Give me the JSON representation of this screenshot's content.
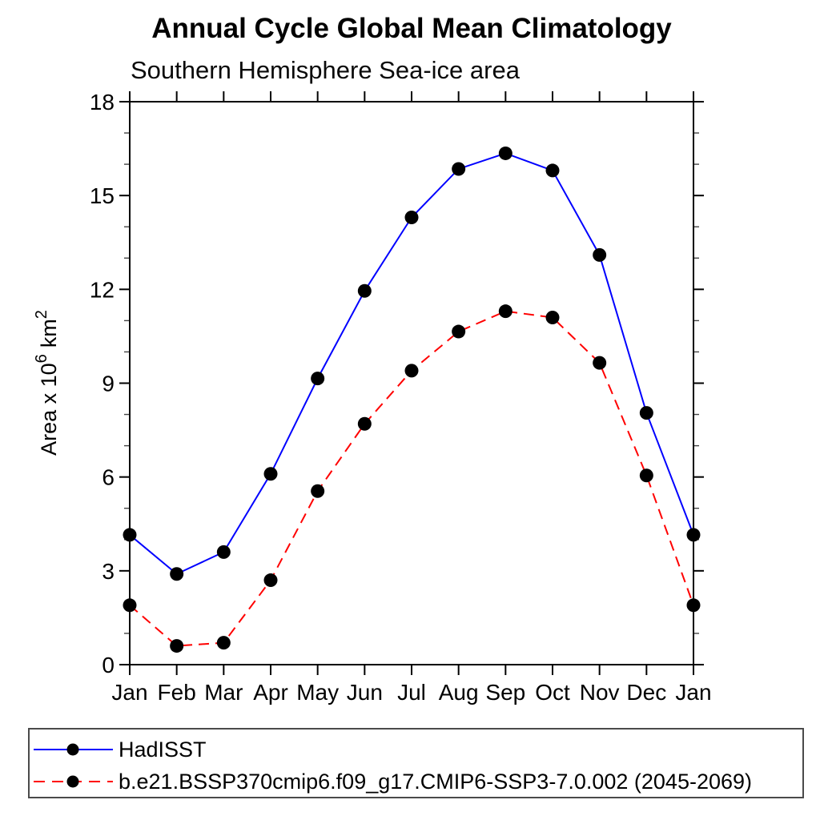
{
  "chart_data": {
    "type": "line",
    "title": "Annual Cycle Global Mean Climatology",
    "subtitle": "Southern Hemisphere Sea-ice area",
    "ylabel": "Area x 10^6 km^2",
    "ylabel_parts": {
      "base1": "Area x 10",
      "sup1": "6",
      "base2": "km",
      "sup2": "2"
    },
    "categories": [
      "Jan",
      "Feb",
      "Mar",
      "Apr",
      "May",
      "Jun",
      "Jul",
      "Aug",
      "Sep",
      "Oct",
      "Nov",
      "Dec",
      "Jan"
    ],
    "series": [
      {
        "name": "HadISST",
        "color": "#0000ff",
        "style": "solid",
        "marker": "filled-circle",
        "marker_color": "#000000",
        "values": [
          4.15,
          2.9,
          3.6,
          6.1,
          9.15,
          11.95,
          14.3,
          15.85,
          16.35,
          15.8,
          13.1,
          8.05,
          4.15
        ]
      },
      {
        "name": "b.e21.BSSP370cmip6.f09_g17.CMIP6-SSP3-7.0.002 (2045-2069)",
        "color": "#ff0000",
        "style": "dashed",
        "marker": "filled-circle",
        "marker_color": "#000000",
        "values": [
          1.9,
          0.6,
          0.7,
          2.7,
          5.55,
          7.7,
          9.4,
          10.65,
          11.3,
          11.1,
          9.65,
          6.05,
          1.9
        ]
      }
    ],
    "ylim": [
      0,
      18
    ],
    "y_major_ticks": [
      0,
      3,
      6,
      9,
      12,
      15,
      18
    ],
    "y_minor_step": 1,
    "x_minor_ticks": false,
    "grid": false,
    "legend_position": "bottom-left",
    "axis_color": "#000000",
    "background_color": "#ffffff"
  }
}
